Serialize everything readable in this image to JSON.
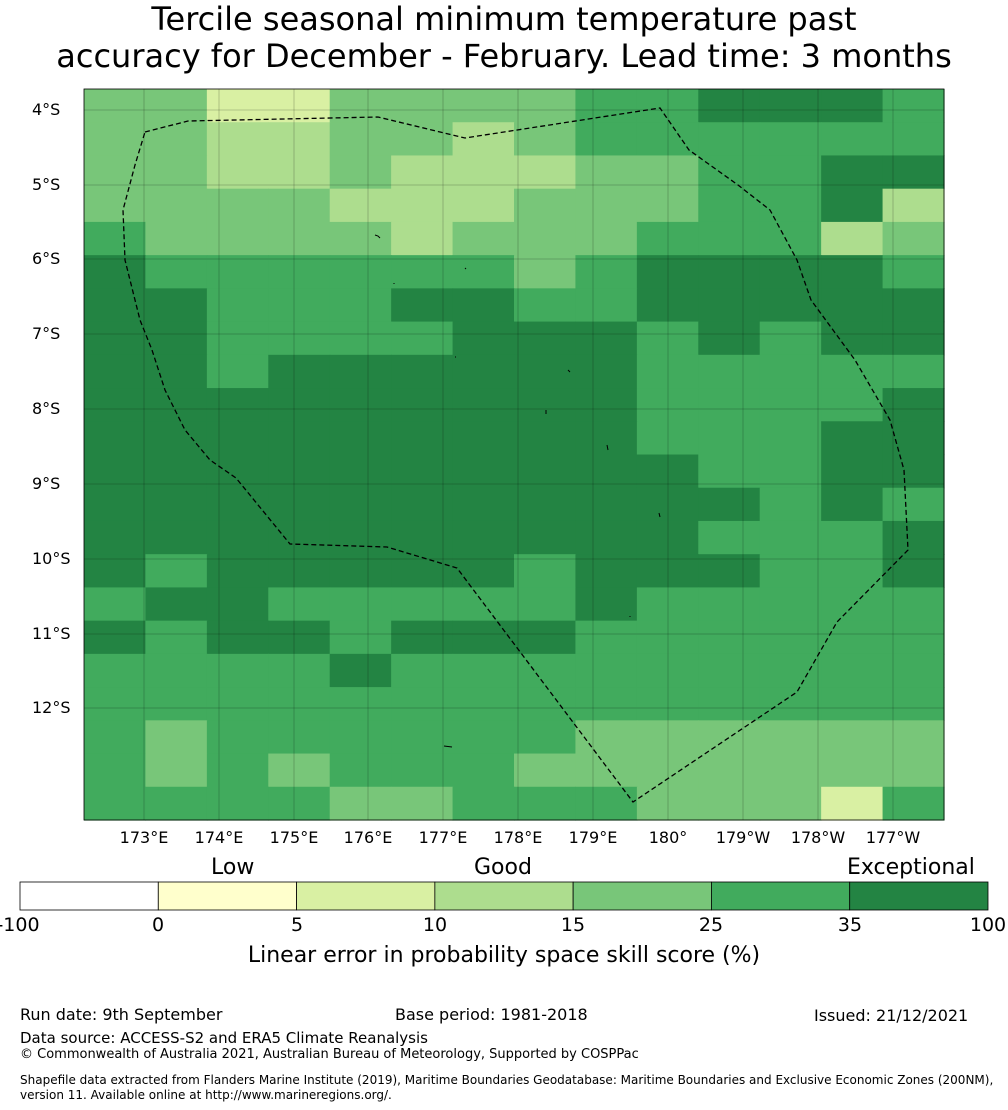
{
  "title_line1": "Tercile seasonal minimum temperature past",
  "title_line2": "accuracy for December - February. Lead time: 3 months",
  "colors": {
    "bin0": "#ffffcc",
    "bin1": "#d9f0a3",
    "bin2": "#addd8e",
    "bin3": "#78c679",
    "bin4": "#41ab5d",
    "bin5": "#238443",
    "below": "#ffffff"
  },
  "map": {
    "y_labels": [
      "4°S",
      "5°S",
      "6°S",
      "7°S",
      "8°S",
      "9°S",
      "10°S",
      "11°S",
      "12°S"
    ],
    "x_labels": [
      "173°E",
      "174°E",
      "175°E",
      "176°E",
      "177°E",
      "178°E",
      "179°E",
      "180°",
      "179°W",
      "178°W",
      "177°W"
    ],
    "grid_rows": [
      "33113333445554",
      "33223323444444",
      "33223222334455",
      "33332223334452",
      "43333233344423",
      "54444443455554",
      "55444554455555",
      "55444455545455",
      "55455555544444",
      "55555555544445",
      "55555555544455",
      "55555555554455",
      "55555555555454",
      "55555555554445",
      "54555554555445",
      "45544444544444",
      "54554555444444",
      "44445444444444",
      "44444444444444",
      "43444444333333",
      "43434443333333",
      "44443344433314"
    ]
  },
  "legend": {
    "categories": [
      "Low",
      "Good",
      "Exceptional"
    ],
    "ticks": [
      "-100",
      "0",
      "5",
      "10",
      "15",
      "25",
      "35",
      "100"
    ],
    "title": "Linear error in probability space skill score (%)"
  },
  "footer": {
    "run_date": "Run date: 9th September",
    "base_period": "Base period: 1981-2018",
    "issued": "Issued: 21/12/2021",
    "data_source": "Data source: ACCESS-S2 and ERA5 Climate Reanalysis",
    "copyright": "© Commonwealth of Australia 2021, Australian Bureau of Meteorology, Supported by COSPPac",
    "shapefile": "Shapefile data extracted from Flanders Marine Institute (2019), Maritime Boundaries Geodatabase: Maritime Boundaries and Exclusive Economic Zones (200NM), version 11. Available online at http://www.marineregions.org/."
  }
}
